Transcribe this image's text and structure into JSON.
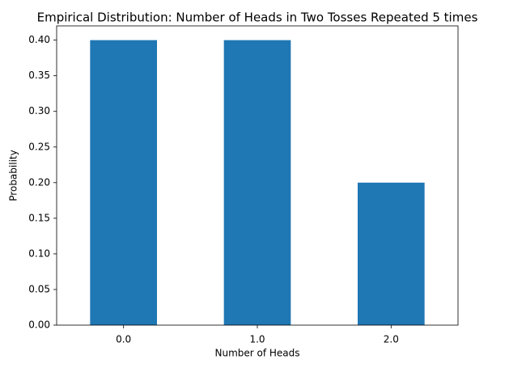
{
  "chart_data": {
    "type": "bar",
    "title": "Empirical Distribution: Number of Heads in Two Tosses Repeated 5 times",
    "x_label": "Number of Heads",
    "y_label": "Probability",
    "categories": [
      "0.0",
      "1.0",
      "2.0"
    ],
    "values": [
      0.4,
      0.4,
      0.2
    ],
    "color": "#1f77b4",
    "ylim": [
      0,
      0.42
    ],
    "yticks": [
      {
        "value": 0,
        "label": "0.00"
      },
      {
        "value": 0.05,
        "label": "0.05"
      },
      {
        "value": 0.1,
        "label": "0.10"
      },
      {
        "value": 0.15,
        "label": "0.15"
      },
      {
        "value": 0.2,
        "label": "0.20"
      },
      {
        "value": 0.25,
        "label": "0.25"
      },
      {
        "value": 0.3,
        "label": "0.30"
      },
      {
        "value": 0.35,
        "label": "0.35"
      },
      {
        "value": 0.4,
        "label": "0.40"
      }
    ],
    "grid": false
  }
}
